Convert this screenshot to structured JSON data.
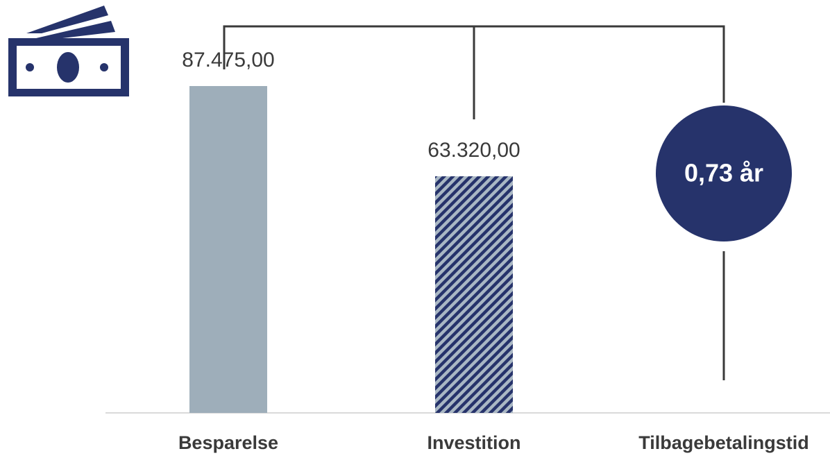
{
  "chart_data": {
    "type": "bar",
    "categories": [
      "Besparelse",
      "Investition",
      "Tilbagebetalingstid"
    ],
    "values": [
      87475,
      63320,
      null
    ],
    "value_labels": [
      "87.475,00",
      "63.320,00",
      null
    ],
    "colors": [
      "#9eaeba",
      "#26336b"
    ],
    "annotation": "0,73 år"
  }
}
